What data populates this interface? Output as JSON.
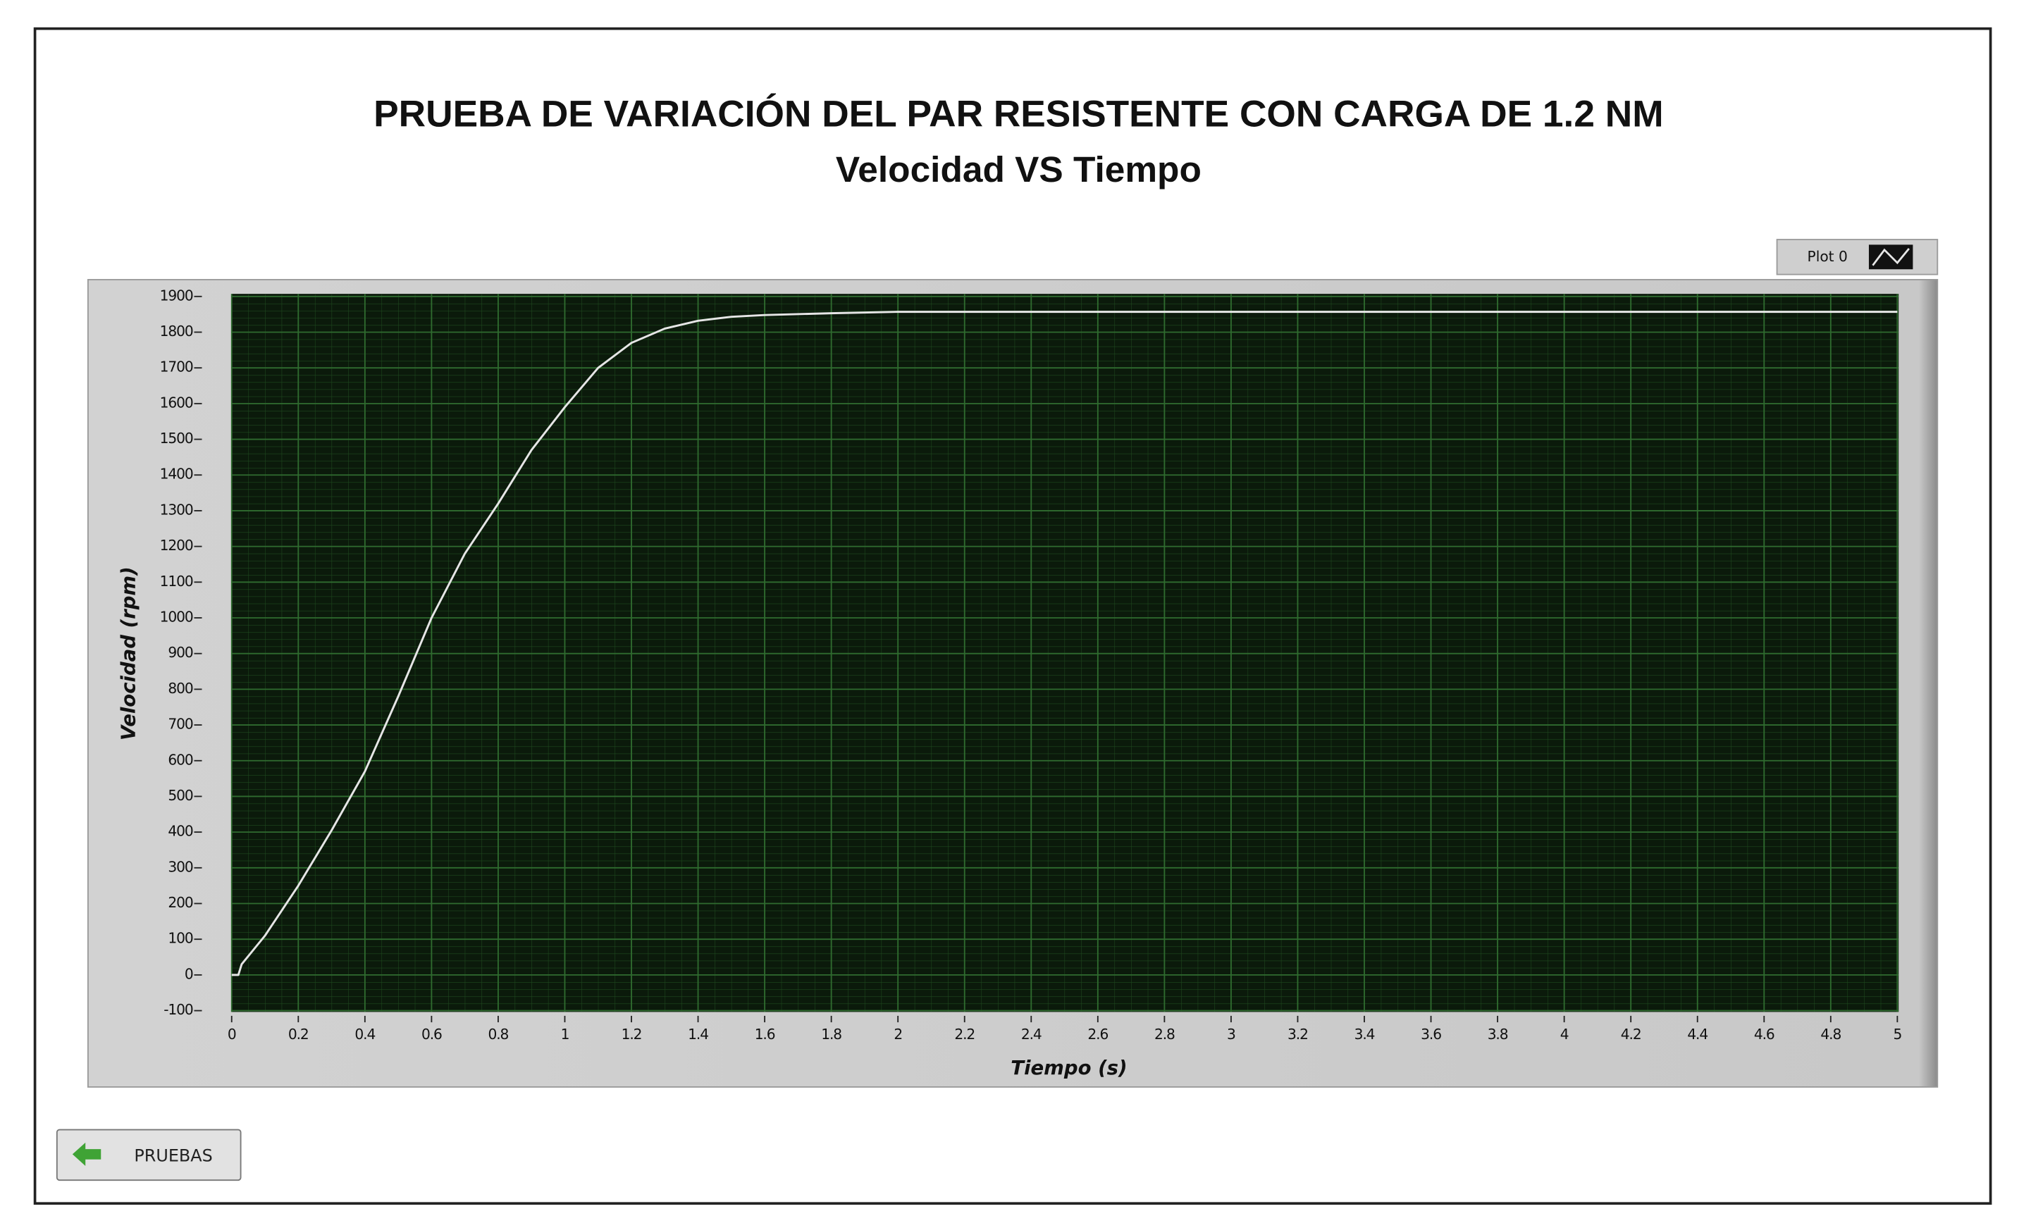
{
  "chart_data": {
    "type": "line",
    "title": "PRUEBA DE VARIACIÓN DEL PAR RESISTENTE CON CARGA DE 1.2 NM",
    "subtitle": "Velocidad VS Tiempo",
    "x_label": "Tiempo (s)",
    "y_label": "Velocidad (rpm)",
    "x": [
      0,
      0.02,
      0.03,
      0.1,
      0.2,
      0.3,
      0.4,
      0.5,
      0.6,
      0.7,
      0.8,
      0.9,
      1.0,
      1.1,
      1.2,
      1.3,
      1.4,
      1.5,
      1.6,
      1.8,
      2,
      5
    ],
    "series": [
      {
        "name": "Plot 0",
        "color": "#e6e6e6",
        "values": [
          0,
          0,
          30,
          110,
          250,
          405,
          570,
          780,
          1000,
          1180,
          1320,
          1470,
          1590,
          1700,
          1770,
          1810,
          1832,
          1843,
          1848,
          1853,
          1857,
          1857
        ]
      }
    ],
    "xlim": [
      0,
      5
    ],
    "xticks": [
      0,
      0.2,
      0.4,
      0.6,
      0.8,
      1,
      1.2,
      1.4,
      1.6,
      1.8,
      2,
      2.2,
      2.4,
      2.6,
      2.8,
      3,
      3.2,
      3.4,
      3.6,
      3.8,
      4,
      4.2,
      4.4,
      4.6,
      4.8,
      5
    ],
    "ylim": [
      -100,
      1900
    ],
    "yticks": [
      -100,
      0,
      100,
      200,
      300,
      400,
      500,
      600,
      700,
      800,
      900,
      1000,
      1100,
      1200,
      1300,
      1400,
      1500,
      1600,
      1700,
      1800,
      1900
    ],
    "grid": true,
    "legend": "top-right"
  },
  "ui": {
    "button": "PRUEBAS"
  }
}
